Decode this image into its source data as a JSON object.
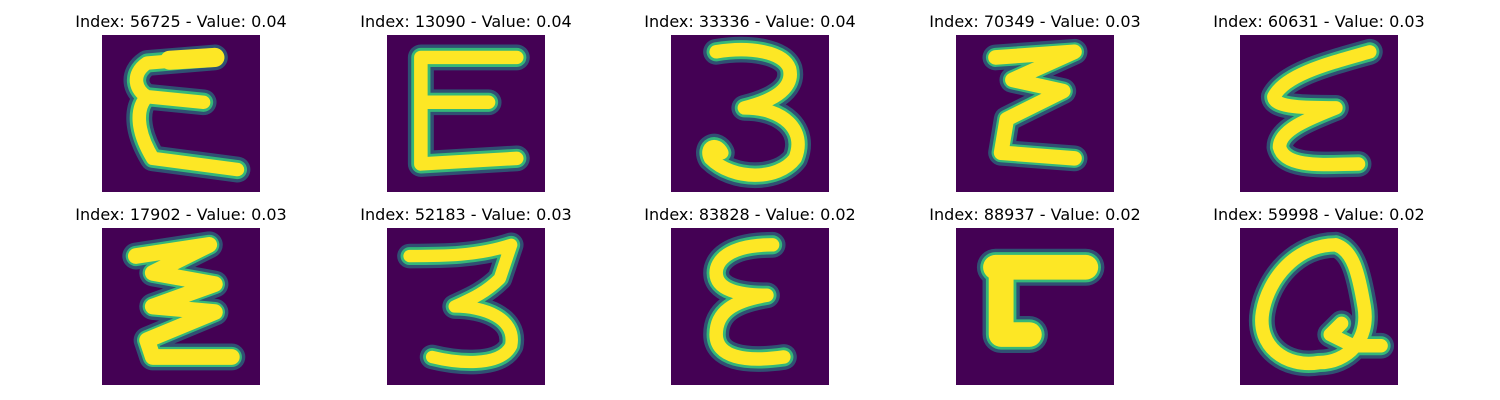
{
  "colors": {
    "background": "#440154",
    "stroke": "#fde725",
    "edge": "#35b779",
    "halo": "#21918c"
  },
  "panels": [
    {
      "title": "Index: 56725 - Value: 0.04",
      "glyph": "epsilon-glyph"
    },
    {
      "title": "Index: 13090 - Value: 0.04",
      "glyph": "e-glyph"
    },
    {
      "title": "Index: 33336 - Value: 0.04",
      "glyph": "three-glyph"
    },
    {
      "title": "Index: 70349 - Value: 0.03",
      "glyph": "epsilon-glyph"
    },
    {
      "title": "Index: 60631 - Value: 0.03",
      "glyph": "epsilon-glyph"
    },
    {
      "title": "Index: 17902 - Value: 0.03",
      "glyph": "epsilon-glyph"
    },
    {
      "title": "Index: 52183 - Value: 0.03",
      "glyph": "three-glyph"
    },
    {
      "title": "Index: 83828 - Value: 0.02",
      "glyph": "epsilon-glyph"
    },
    {
      "title": "Index: 88937 - Value: 0.02",
      "glyph": "corner-glyph"
    },
    {
      "title": "Index: 59998 - Value: 0.02",
      "glyph": "q-glyph"
    }
  ]
}
